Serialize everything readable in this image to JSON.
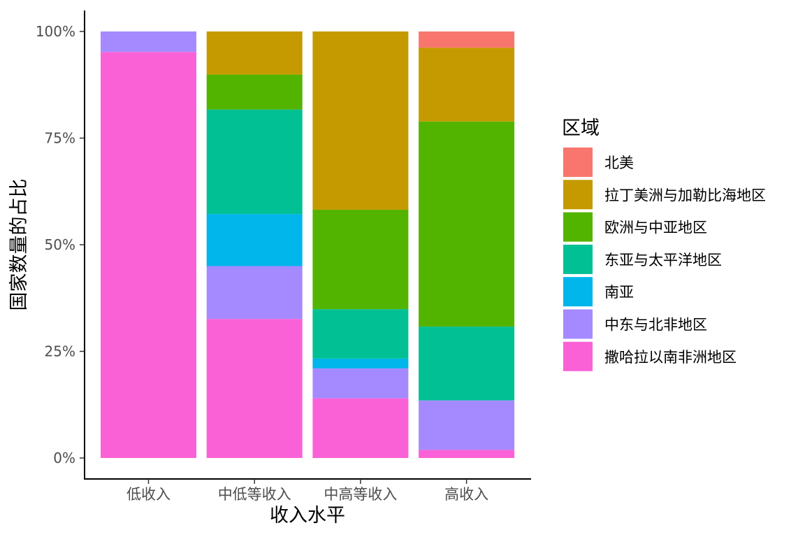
{
  "chart_data": {
    "type": "bar",
    "stacked": "percent",
    "xlabel": "收入水平",
    "ylabel": "国家数量的占比",
    "categories": [
      "低收入",
      "中低等收入",
      "中高等收入",
      "高收入"
    ],
    "yticks": [
      "0%",
      "25%",
      "50%",
      "75%",
      "100%"
    ],
    "ylim": [
      0,
      1
    ],
    "legend_title": "区域",
    "legend_position": "right",
    "grid": false,
    "series": [
      {
        "name": "撒哈拉以南非洲地区",
        "color": "#FB61D7",
        "values": [
          0.952,
          0.326,
          0.14,
          0.019
        ]
      },
      {
        "name": "中东与北非地区",
        "color": "#A58AFF",
        "values": [
          0.048,
          0.124,
          0.07,
          0.116
        ]
      },
      {
        "name": "南亚",
        "color": "#00B6EB",
        "values": [
          0,
          0.122,
          0.023,
          0
        ]
      },
      {
        "name": "东亚与太平洋地区",
        "color": "#00C094",
        "values": [
          0,
          0.245,
          0.116,
          0.173
        ]
      },
      {
        "name": "欧洲与中亚地区",
        "color": "#53B400",
        "values": [
          0,
          0.082,
          0.233,
          0.481
        ]
      },
      {
        "name": "拉丁美洲与加勒比海地区",
        "color": "#C49A00",
        "values": [
          0,
          0.101,
          0.418,
          0.173
        ]
      },
      {
        "name": "北美",
        "color": "#F8766D",
        "values": [
          0,
          0,
          0,
          0.038
        ]
      }
    ]
  }
}
